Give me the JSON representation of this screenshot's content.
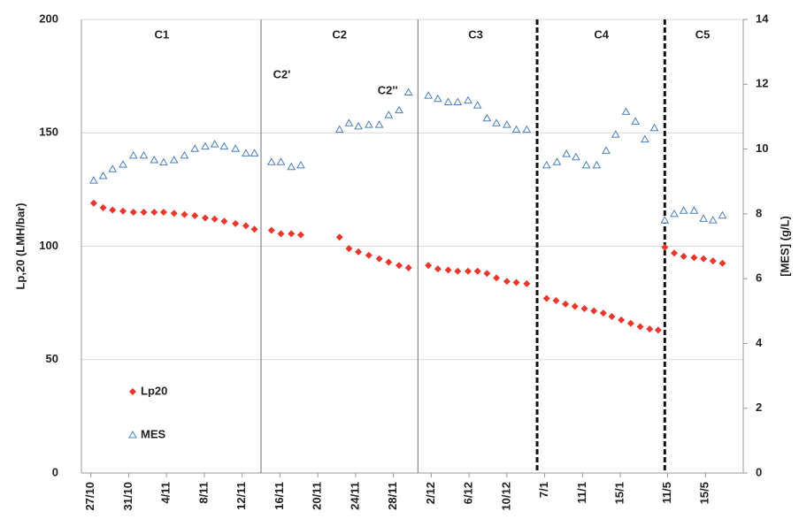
{
  "chart_data": {
    "type": "scatter",
    "ylabel": "Lp,20 (LMH/bar)",
    "y2label": "[MES] (g/L)",
    "xlim": [
      -1,
      69
    ],
    "xticks": [
      {
        "value": 0,
        "label": "27/10"
      },
      {
        "value": 4,
        "label": "31/10"
      },
      {
        "value": 8,
        "label": "4/11"
      },
      {
        "value": 12,
        "label": "8/11"
      },
      {
        "value": 16,
        "label": "12/11"
      },
      {
        "value": 20,
        "label": "16/11"
      },
      {
        "value": 24,
        "label": "20/11"
      },
      {
        "value": 28,
        "label": "24/11"
      },
      {
        "value": 32,
        "label": "28/11"
      },
      {
        "value": 36,
        "label": "2/12"
      },
      {
        "value": 40,
        "label": "6/12"
      },
      {
        "value": 44,
        "label": "10/12"
      },
      {
        "value": 48,
        "label": "7/1"
      },
      {
        "value": 52,
        "label": "11/1"
      },
      {
        "value": 56,
        "label": "15/1"
      },
      {
        "value": 61,
        "label": "11/5"
      },
      {
        "value": 65,
        "label": "15/5"
      }
    ],
    "ylim": [
      0,
      200
    ],
    "yticks": [
      0,
      50,
      100,
      150,
      200
    ],
    "y2lim": [
      0,
      14
    ],
    "y2ticks": [
      0,
      2,
      4,
      6,
      8,
      10,
      12,
      14
    ],
    "grid": true,
    "legend": "lower left",
    "boundaries": [
      {
        "x": 18,
        "style": "solid"
      },
      {
        "x": 34.6,
        "style": "solid"
      },
      {
        "x": 47.2,
        "style": "dashed"
      },
      {
        "x": 60.7,
        "style": "dashed"
      }
    ],
    "phases": [
      {
        "label": "C1",
        "x": 7.5,
        "y": 193
      },
      {
        "label": "C2",
        "x": 26.3,
        "y": 193
      },
      {
        "label": "C3",
        "x": 40.7,
        "y": 193
      },
      {
        "label": "C4",
        "x": 54,
        "y": 193
      },
      {
        "label": "C5",
        "x": 64.7,
        "y": 193
      },
      {
        "label": "C2'",
        "x": 20.2,
        "y": 175.4
      },
      {
        "label": "C2''",
        "x": 31.4,
        "y": 168.4
      }
    ],
    "series": [
      {
        "name": "Lp20",
        "color": "#e8382b",
        "marker": "diamond",
        "x": [
          0.3,
          1.3,
          2.3,
          3.4,
          4.5,
          5.6,
          6.7,
          7.7,
          8.8,
          9.9,
          11,
          12.1,
          13.1,
          14.1,
          15.3,
          16.4,
          17.3,
          19.1,
          20.1,
          21.2,
          22.2,
          26.3,
          27.3,
          28.3,
          29.4,
          30.5,
          31.5,
          32.6,
          33.6,
          35.7,
          36.7,
          37.8,
          38.8,
          39.9,
          40.9,
          41.9,
          42.9,
          44,
          45,
          46.1,
          48.2,
          49.2,
          50.2,
          51.2,
          52.2,
          53.2,
          54.2,
          55.1,
          56.1,
          57.1,
          58.1,
          59.1,
          60,
          60.7,
          61.7,
          62.7,
          63.8,
          64.8,
          65.8,
          66.8
        ],
        "values": [
          119,
          117,
          116,
          115.5,
          115,
          115,
          115,
          115,
          114.5,
          114,
          113.5,
          112.5,
          112,
          111,
          110,
          109,
          107.5,
          107,
          105.5,
          105.5,
          105,
          104,
          99,
          97.5,
          96,
          94.5,
          93,
          91.5,
          90.5,
          91.5,
          90,
          89.5,
          89,
          89,
          89,
          88,
          86,
          84.5,
          84,
          83.5,
          77,
          76,
          74.5,
          73.5,
          72.5,
          71.5,
          70.5,
          69,
          67.5,
          66,
          64.5,
          63.5,
          63,
          99.5,
          97,
          95.5,
          95,
          94.5,
          93.5,
          92.5
        ]
      },
      {
        "name": "MES",
        "color": "#4a7ebb",
        "marker": "triangle",
        "axis": "y2",
        "x": [
          0.3,
          1.3,
          2.3,
          3.4,
          4.5,
          5.6,
          6.7,
          7.7,
          8.8,
          9.9,
          11,
          12.1,
          13.1,
          14.1,
          15.3,
          16.4,
          17.3,
          19.1,
          20.1,
          21.2,
          22.2,
          26.3,
          27.3,
          28.3,
          29.4,
          30.5,
          31.5,
          32.6,
          33.6,
          35.7,
          36.7,
          37.8,
          38.8,
          39.9,
          40.9,
          41.9,
          42.9,
          44,
          45,
          46.1,
          48.2,
          49.3,
          50.3,
          51.3,
          52.4,
          53.5,
          54.5,
          55.5,
          56.6,
          57.6,
          58.6,
          59.6,
          60.7,
          61.7,
          62.7,
          63.8,
          64.8,
          65.8,
          66.8
        ],
        "values": [
          9.03,
          9.17,
          9.38,
          9.52,
          9.8,
          9.8,
          9.66,
          9.59,
          9.66,
          9.8,
          10.01,
          10.08,
          10.15,
          10.08,
          10.01,
          9.87,
          9.87,
          9.6,
          9.6,
          9.45,
          9.5,
          10.6,
          10.8,
          10.7,
          10.75,
          10.75,
          11.05,
          11.2,
          11.75,
          11.65,
          11.55,
          11.45,
          11.45,
          11.5,
          11.35,
          10.95,
          10.8,
          10.75,
          10.6,
          10.6,
          9.5,
          9.6,
          9.85,
          9.75,
          9.5,
          9.5,
          9.95,
          10.45,
          11.15,
          10.85,
          10.3,
          10.65,
          7.8,
          8.0,
          8.1,
          8.1,
          7.85,
          7.8,
          7.95
        ]
      }
    ]
  }
}
